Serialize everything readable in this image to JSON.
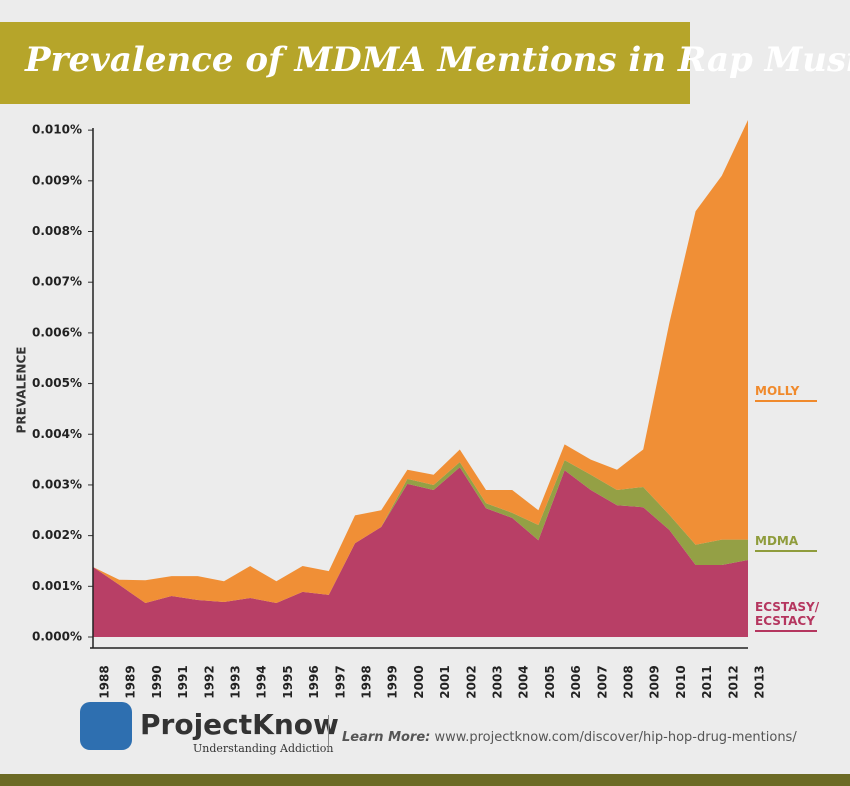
{
  "chart_data": {
    "type": "stacked-area",
    "title": "Prevalence of MDMA Mentions in Rap Music",
    "y_label": "PREVALENCE",
    "categories": [
      "1988",
      "1989",
      "1990",
      "1991",
      "1992",
      "1993",
      "1994",
      "1995",
      "1996",
      "1997",
      "1998",
      "1999",
      "2000",
      "2001",
      "2002",
      "2003",
      "2004",
      "2005",
      "2006",
      "2007",
      "2008",
      "2009",
      "2010",
      "2011",
      "2012",
      "2013"
    ],
    "series": [
      {
        "name": "ECSTASY/ ECSTACY",
        "color": "#b5365f",
        "values": [
          0.00138,
          0.00103,
          0.00067,
          0.00081,
          0.00073,
          0.00069,
          0.00077,
          0.00067,
          0.00089,
          0.00083,
          0.00185,
          0.00217,
          0.00302,
          0.0029,
          0.00335,
          0.00254,
          0.00235,
          0.00191,
          0.00329,
          0.0029,
          0.0026,
          0.00256,
          0.00211,
          0.00142,
          0.00142,
          0.00152
        ]
      },
      {
        "name": "MDMA",
        "color": "#8f9c3c",
        "values": [
          0,
          0,
          0,
          0,
          0,
          0,
          0,
          0,
          0,
          0,
          0,
          0,
          0.0001,
          0.0001,
          0.0001,
          0.0001,
          0.0001,
          0.0003,
          0.0002,
          0.0003,
          0.0003,
          0.0004,
          0.0003,
          0.0004,
          0.0005,
          0.0004
        ]
      },
      {
        "name": "MOLLY",
        "color": "#f08a2c",
        "values": [
          0,
          0.0001,
          0.00045,
          0.00039,
          0.00047,
          0.00041,
          0.00063,
          0.00043,
          0.00051,
          0.00047,
          0.00055,
          0.00033,
          0.00018,
          0.0002,
          0.00025,
          0.00026,
          0.00045,
          0.00029,
          0.00031,
          0.0003,
          0.0004,
          0.00074,
          0.00379,
          0.00658,
          0.00718,
          0.00828
        ]
      }
    ],
    "ylim": [
      0,
      0.0102
    ],
    "yticks": [
      {
        "value": 0,
        "label": "0.000%"
      },
      {
        "value": 0.001,
        "label": "0.001%"
      },
      {
        "value": 0.002,
        "label": "0.002%"
      },
      {
        "value": 0.003,
        "label": "0.003%"
      },
      {
        "value": 0.004,
        "label": "0.004%"
      },
      {
        "value": 0.005,
        "label": "0.005%"
      },
      {
        "value": 0.006,
        "label": "0.006%"
      },
      {
        "value": 0.007,
        "label": "0.007%"
      },
      {
        "value": 0.008,
        "label": "0.008%"
      },
      {
        "value": 0.009,
        "label": "0.009%"
      },
      {
        "value": 0.01,
        "label": "0.010%"
      }
    ]
  },
  "footer": {
    "logo": "ProjectKnow",
    "tagline": "Understanding Addiction",
    "learn_more": "Learn More:",
    "url": "www.projectknow.com/discover/hip-hop-drug-mentions/"
  }
}
